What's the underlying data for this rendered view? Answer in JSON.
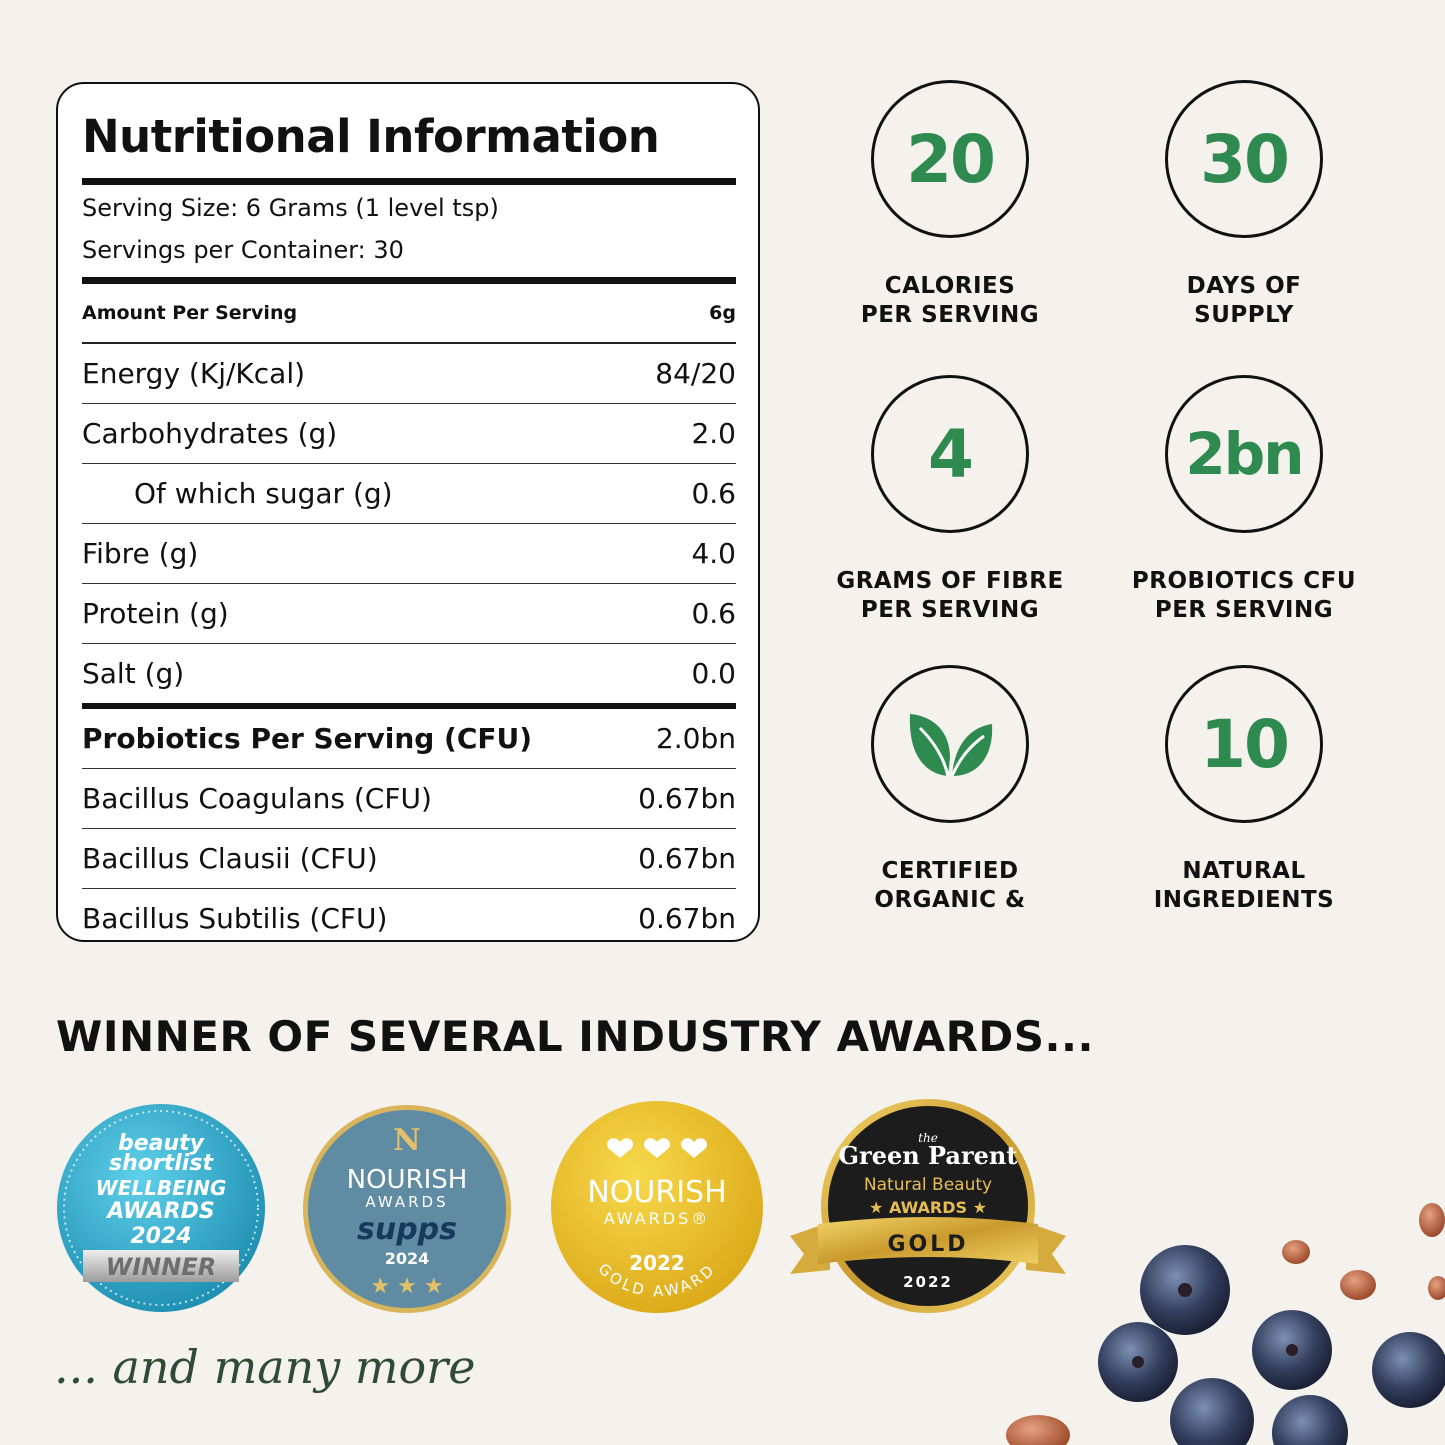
{
  "nutrition": {
    "title": "Nutritional Information",
    "serving_size": "Serving Size: 6 Grams (1 level tsp)",
    "servings_per_container": "Servings per Container: 30",
    "amount_header": {
      "label": "Amount Per Serving",
      "value": "6g"
    },
    "rows": [
      {
        "label": "Energy (Kj/Kcal)",
        "value": "84/20"
      },
      {
        "label": "Carbohydrates (g)",
        "value": "2.0"
      },
      {
        "label": "Of which sugar (g)",
        "value": "0.6"
      },
      {
        "label": "Fibre  (g)",
        "value": "4.0"
      },
      {
        "label": "Protein  (g)",
        "value": "0.6"
      },
      {
        "label": "Salt  (g)",
        "value": "0.0"
      }
    ],
    "probiotics": [
      {
        "label": "Probiotics Per Serving (CFU)",
        "value": "2.0bn"
      },
      {
        "label": "Bacillus Coagulans (CFU)",
        "value": "0.67bn"
      },
      {
        "label": "Bacillus Clausii (CFU)",
        "value": "0.67bn"
      },
      {
        "label": "Bacillus Subtilis (CFU)",
        "value": "0.67bn"
      }
    ]
  },
  "stats": [
    {
      "number": "20",
      "line1": "CALORIES",
      "line2": "PER SERVING"
    },
    {
      "number": "30",
      "line1": "DAYS OF",
      "line2": "SUPPLY"
    },
    {
      "number": "4",
      "line1": "GRAMS OF FIBRE",
      "line2": "PER SERVING"
    },
    {
      "number": "2bn",
      "line1": "PROBIOTICS CFU",
      "line2": "PER SERVING"
    },
    {
      "icon": "leaf-icon",
      "line1": "CERTIFIED",
      "line2": "ORGANIC &"
    },
    {
      "number": "10",
      "line1": "NATURAL",
      "line2": "INGREDIENTS"
    }
  ],
  "awards": {
    "title": "WINNER OF SEVERAL INDUSTRY AWARDS...",
    "badges": [
      {
        "l1": "beauty",
        "l2": "shortlist",
        "l3": "WELLBEING",
        "l4": "AWARDS",
        "l5": "2024",
        "l6": "WINNER"
      },
      {
        "l1": "N",
        "l2": "NOURISH",
        "l3": "AWARDS",
        "l4": "supps",
        "l5": "2024",
        "l6": "★ ★ ★"
      },
      {
        "l1": "NOURISH",
        "l2": "AWARDS®",
        "l3": "2022",
        "l4": "GOLD AWARD"
      },
      {
        "l1": "the",
        "l2": "Green Parent",
        "l3": "Natural Beauty",
        "l4": "★ AWARDS ★",
        "l5": "GOLD",
        "l6": "2022"
      }
    ],
    "more": "... and many more"
  },
  "colors": {
    "accent_green": "#2e8a4f",
    "background": "#f5f2ee"
  }
}
